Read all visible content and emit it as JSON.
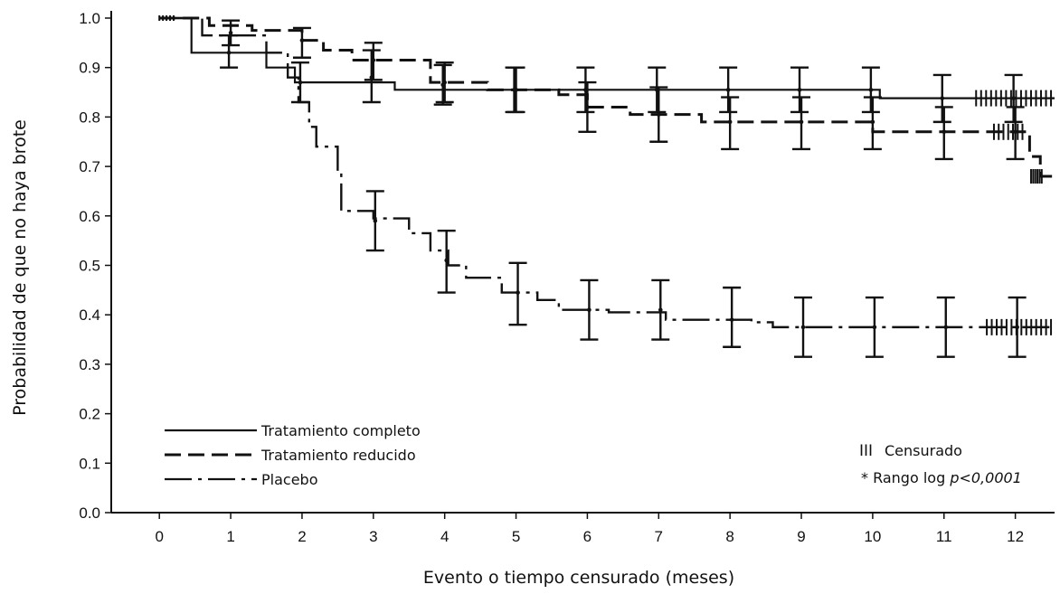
{
  "chart_data": {
    "type": "line",
    "title": "",
    "xlabel": "Evento o tiempo censurado (meses)",
    "ylabel": "Probabilidad de que no haya brote",
    "xlim": [
      -0.7,
      12.55
    ],
    "ylim": [
      0,
      1.0
    ],
    "x_ticks": [
      "0",
      "1",
      "2",
      "3",
      "4",
      "5",
      "6",
      "7",
      "8",
      "9",
      "10",
      "11",
      "12"
    ],
    "y_ticks": [
      "0.0",
      "0.1",
      "0.2",
      "0.3",
      "0.4",
      "0.5",
      "0.6",
      "0.7",
      "0.8",
      "0.9",
      "1.0"
    ],
    "grid": false,
    "legend_position": "bottom-left",
    "series": [
      {
        "name": "Tratamiento completo",
        "style": "solid",
        "steps": [
          [
            0,
            1.0
          ],
          [
            0.45,
            0.93
          ],
          [
            1.5,
            0.9
          ],
          [
            1.9,
            0.87
          ],
          [
            3.3,
            0.855
          ],
          [
            10.1,
            0.838
          ],
          [
            12.55,
            0.838
          ]
        ],
        "error_bars": [
          [
            1,
            0.93,
            0.9,
            0.965
          ],
          [
            2,
            0.87,
            0.83,
            0.91
          ],
          [
            3,
            0.88,
            0.83,
            0.935
          ],
          [
            4,
            0.865,
            0.825,
            0.905
          ],
          [
            5,
            0.855,
            0.81,
            0.9
          ],
          [
            6,
            0.855,
            0.81,
            0.9
          ],
          [
            7,
            0.855,
            0.81,
            0.9
          ],
          [
            8,
            0.855,
            0.81,
            0.9
          ],
          [
            9,
            0.855,
            0.81,
            0.9
          ],
          [
            10,
            0.855,
            0.81,
            0.9
          ],
          [
            11,
            0.838,
            0.79,
            0.885
          ],
          [
            12,
            0.838,
            0.79,
            0.885
          ]
        ],
        "censor_range": [
          11.45,
          12.5
        ]
      },
      {
        "name": "Tratamiento reducido",
        "style": "dashed",
        "steps": [
          [
            0,
            1.0
          ],
          [
            0.7,
            0.985
          ],
          [
            1.3,
            0.975
          ],
          [
            2.0,
            0.955
          ],
          [
            2.3,
            0.935
          ],
          [
            2.7,
            0.915
          ],
          [
            3.8,
            0.87
          ],
          [
            4.6,
            0.855
          ],
          [
            5.6,
            0.845
          ],
          [
            6.0,
            0.82
          ],
          [
            6.6,
            0.805
          ],
          [
            7.6,
            0.79
          ],
          [
            10.0,
            0.77
          ],
          [
            12.2,
            0.72
          ],
          [
            12.35,
            0.68
          ],
          [
            12.55,
            0.68
          ]
        ],
        "error_bars": [
          [
            1,
            0.97,
            0.945,
            0.995
          ],
          [
            2,
            0.955,
            0.92,
            0.98
          ],
          [
            3,
            0.915,
            0.875,
            0.95
          ],
          [
            4,
            0.87,
            0.83,
            0.91
          ],
          [
            5,
            0.855,
            0.81,
            0.9
          ],
          [
            6,
            0.82,
            0.77,
            0.87
          ],
          [
            7,
            0.805,
            0.75,
            0.86
          ],
          [
            8,
            0.79,
            0.735,
            0.84
          ],
          [
            9,
            0.79,
            0.735,
            0.84
          ],
          [
            10,
            0.79,
            0.735,
            0.84
          ],
          [
            11,
            0.77,
            0.715,
            0.82
          ],
          [
            12,
            0.77,
            0.715,
            0.82
          ]
        ],
        "censor_range": [
          11.7,
          12.1
        ]
      },
      {
        "name": "Placebo",
        "style": "dash-dot",
        "steps": [
          [
            0,
            1.0
          ],
          [
            0.6,
            0.965
          ],
          [
            1.5,
            0.93
          ],
          [
            1.8,
            0.88
          ],
          [
            1.95,
            0.83
          ],
          [
            2.1,
            0.78
          ],
          [
            2.2,
            0.74
          ],
          [
            2.5,
            0.69
          ],
          [
            2.55,
            0.61
          ],
          [
            3.0,
            0.595
          ],
          [
            3.5,
            0.565
          ],
          [
            3.8,
            0.53
          ],
          [
            4.05,
            0.5
          ],
          [
            4.3,
            0.475
          ],
          [
            4.8,
            0.445
          ],
          [
            5.3,
            0.43
          ],
          [
            5.6,
            0.41
          ],
          [
            6.3,
            0.405
          ],
          [
            7.1,
            0.39
          ],
          [
            8.3,
            0.385
          ],
          [
            8.6,
            0.375
          ],
          [
            12.55,
            0.375
          ]
        ],
        "error_bars": [
          [
            3,
            0.59,
            0.53,
            0.65
          ],
          [
            4,
            0.51,
            0.445,
            0.57
          ],
          [
            5,
            0.445,
            0.38,
            0.505
          ],
          [
            6,
            0.41,
            0.35,
            0.47
          ],
          [
            7,
            0.41,
            0.35,
            0.47
          ],
          [
            8,
            0.39,
            0.335,
            0.455
          ],
          [
            9,
            0.375,
            0.315,
            0.435
          ],
          [
            10,
            0.375,
            0.315,
            0.435
          ],
          [
            11,
            0.375,
            0.315,
            0.435
          ],
          [
            12,
            0.375,
            0.315,
            0.435
          ]
        ],
        "censor_range": [
          11.6,
          12.5
        ]
      }
    ],
    "annotations": {
      "censor_symbol": "III",
      "censor_label": "Censurado",
      "logrank_prefix": "* Rango log ",
      "logrank_p": "p<0,0001"
    }
  }
}
